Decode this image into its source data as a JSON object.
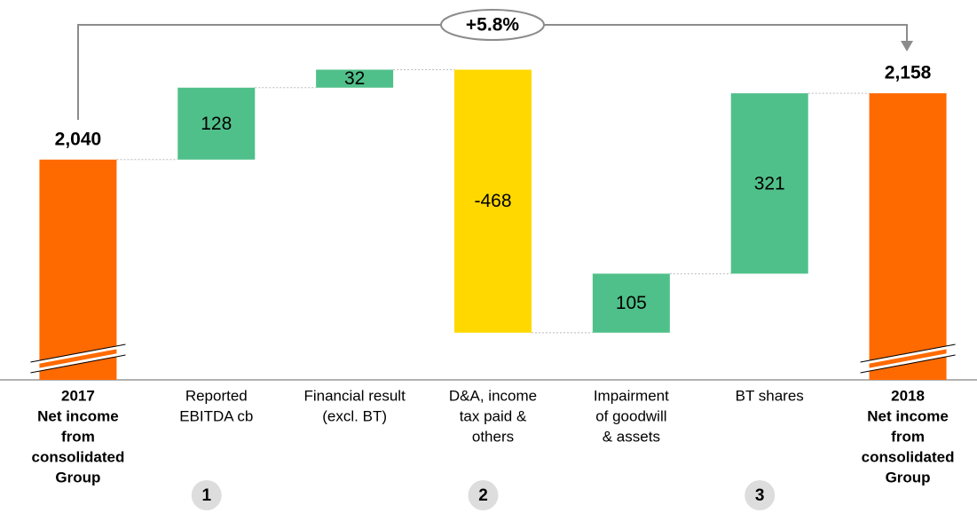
{
  "chart_data": {
    "type": "waterfall",
    "categories": [
      [
        "2017",
        "Net income",
        "from",
        "consolidated",
        "Group"
      ],
      [
        "Reported",
        "EBITDA cb"
      ],
      [
        "Financial result",
        "(excl. BT)"
      ],
      [
        "D&A, income",
        "tax paid &",
        "others"
      ],
      [
        "Impairment",
        "of goodwill",
        "& assets"
      ],
      [
        "BT shares"
      ],
      [
        "2018",
        "Net income",
        "from",
        "consolidated",
        "Group"
      ]
    ],
    "values": [
      2040,
      128,
      32,
      -468,
      105,
      321,
      2158
    ],
    "value_labels": [
      "2,040",
      "128",
      "32",
      "-468",
      "105",
      "321",
      "2,158"
    ],
    "kinds": [
      "total",
      "delta",
      "delta",
      "delta",
      "delta",
      "delta",
      "total"
    ],
    "colors": [
      "#ff6a00",
      "#50c08a",
      "#50c08a",
      "#ffd800",
      "#50c08a",
      "#50c08a",
      "#ff6a00"
    ],
    "ylim": [
      1648,
      2324
    ],
    "annotation": "+5.8%",
    "markers": [
      null,
      "1",
      null,
      "2",
      null,
      "3",
      null
    ]
  }
}
